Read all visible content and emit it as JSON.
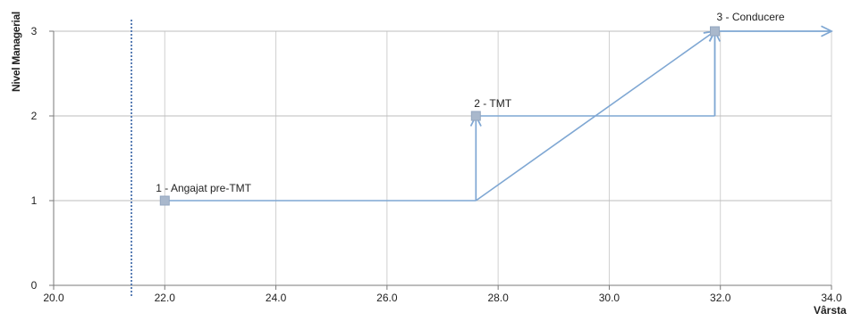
{
  "chart_data": {
    "type": "line",
    "xlabel": "Vârsta",
    "ylabel": "Nivel Managerial",
    "xlim": [
      20,
      34
    ],
    "ylim": [
      0,
      3
    ],
    "x_ticks": [
      "20.0",
      "22.0",
      "24.0",
      "26.0",
      "28.0",
      "30.0",
      "32.0",
      "34.0"
    ],
    "y_ticks": [
      "0",
      "1",
      "2",
      "3"
    ],
    "grid": true,
    "points": [
      {
        "label": "1 - Angajat pre-TMT",
        "x": 22.0,
        "y": 1
      },
      {
        "label": "2 - TMT",
        "x": 27.6,
        "y": 2
      },
      {
        "label": "3 - Conducere",
        "x": 31.9,
        "y": 3
      }
    ],
    "path": [
      {
        "x": 22.0,
        "y": 1
      },
      {
        "x": 27.6,
        "y": 1
      },
      {
        "x": 27.6,
        "y": 2
      },
      {
        "x": 31.9,
        "y": 2
      },
      {
        "x": 31.9,
        "y": 3
      },
      {
        "x": 34.0,
        "y": 3
      }
    ],
    "arrows": [
      {
        "from": {
          "x": 27.6,
          "y": 1
        },
        "to": {
          "x": 27.6,
          "y": 2
        }
      },
      {
        "from": {
          "x": 27.6,
          "y": 1
        },
        "to": {
          "x": 31.9,
          "y": 3
        }
      },
      {
        "from": {
          "x": 31.9,
          "y": 2
        },
        "to": {
          "x": 31.9,
          "y": 3
        }
      },
      {
        "from": {
          "x": 31.9,
          "y": 3
        },
        "to": {
          "x": 34.0,
          "y": 3
        }
      }
    ],
    "vline_x": 21.4,
    "line_color": "#7FA7D3",
    "marker_color": "#A9B8CC",
    "vline_color": "#5B7FB5"
  }
}
